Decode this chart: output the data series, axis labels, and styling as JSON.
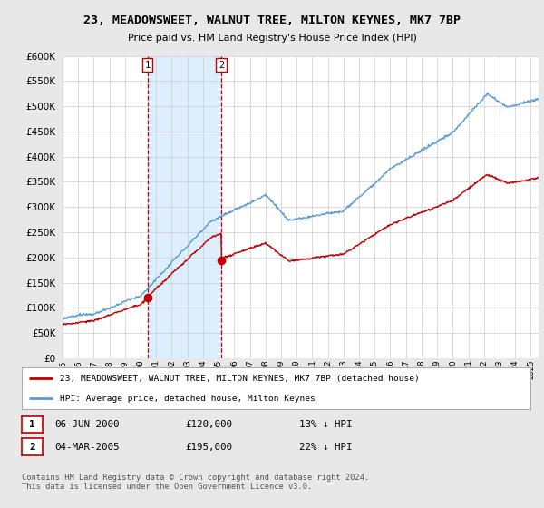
{
  "title": "23, MEADOWSWEET, WALNUT TREE, MILTON KEYNES, MK7 7BP",
  "subtitle": "Price paid vs. HM Land Registry's House Price Index (HPI)",
  "legend_line1": "23, MEADOWSWEET, WALNUT TREE, MILTON KEYNES, MK7 7BP (detached house)",
  "legend_line2": "HPI: Average price, detached house, Milton Keynes",
  "annotation1_date": "06-JUN-2000",
  "annotation1_price": "£120,000",
  "annotation1_hpi": "13% ↓ HPI",
  "annotation2_date": "04-MAR-2005",
  "annotation2_price": "£195,000",
  "annotation2_hpi": "22% ↓ HPI",
  "footer": "Contains HM Land Registry data © Crown copyright and database right 2024.\nThis data is licensed under the Open Government Licence v3.0.",
  "sale1_year": 2000.44,
  "sale1_value": 120000,
  "sale2_year": 2005.17,
  "sale2_value": 195000,
  "hpi_color": "#5b9bd5",
  "price_color": "#c00000",
  "shade_color": "#ddeeff",
  "background_color": "#e8e8e8",
  "plot_bg_color": "#ffffff",
  "ylim": [
    0,
    600000
  ],
  "xlim_start": 1995,
  "xlim_end": 2025.5
}
